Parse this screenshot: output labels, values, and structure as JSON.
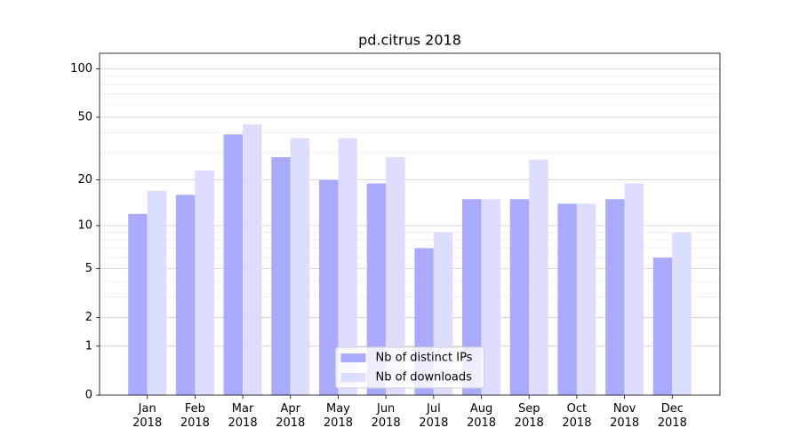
{
  "chart_data": {
    "type": "bar",
    "title": "pd.citrus 2018",
    "categories": [
      "Jan\n2018",
      "Feb\n2018",
      "Mar\n2018",
      "Apr\n2018",
      "May\n2018",
      "Jun\n2018",
      "Jul\n2018",
      "Aug\n2018",
      "Sep\n2018",
      "Oct\n2018",
      "Nov\n2018",
      "Dec\n2018"
    ],
    "series": [
      {
        "name": "Nb of distinct IPs",
        "color": "#aaaaff",
        "values": [
          12,
          16,
          39,
          28,
          20,
          19,
          7,
          15,
          15,
          14,
          15,
          6
        ]
      },
      {
        "name": "Nb of downloads",
        "color": "#ddddff",
        "values": [
          17,
          23,
          45,
          37,
          37,
          28,
          9,
          15,
          27,
          14,
          19,
          9
        ]
      }
    ],
    "yscale": "log1p",
    "ylim": [
      0,
      125
    ],
    "yticks": [
      0,
      1,
      2,
      5,
      10,
      20,
      50,
      100
    ],
    "yminorticks": [
      3,
      4,
      6,
      7,
      8,
      9,
      30,
      40,
      60,
      70,
      80,
      90
    ],
    "grid": true,
    "legend": "lower center"
  }
}
